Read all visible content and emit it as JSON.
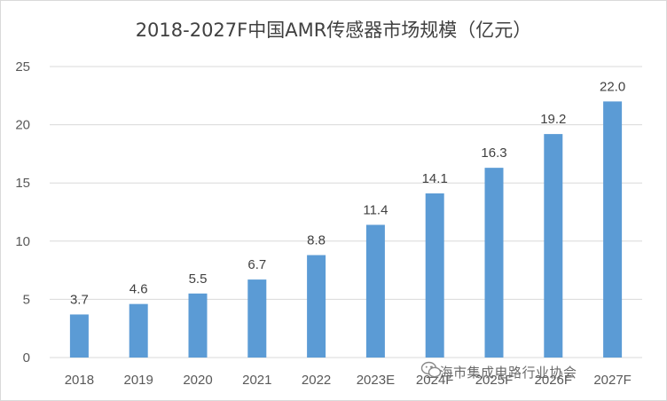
{
  "chart_data": {
    "type": "bar",
    "title": "2018-2027F中国AMR传感器市场规模（亿元）",
    "categories": [
      "2018",
      "2019",
      "2020",
      "2021",
      "2022",
      "2023E",
      "2024F",
      "2025F",
      "2026F",
      "2027F"
    ],
    "values": [
      3.7,
      4.6,
      5.5,
      6.7,
      8.8,
      11.4,
      14.1,
      16.3,
      19.2,
      22.0
    ],
    "data_labels": [
      "3.7",
      "4.6",
      "5.5",
      "6.7",
      "8.8",
      "11.4",
      "14.1",
      "16.3",
      "19.2",
      "22.0"
    ],
    "y_ticks": [
      "0",
      "5",
      "10",
      "15",
      "20",
      "25"
    ],
    "ylim": [
      0,
      25
    ],
    "xlabel": "",
    "ylabel": "",
    "grid": true,
    "legend": "none",
    "bar_color": "#5b9bd5",
    "grid_color": "#d9d9d9"
  },
  "watermark": {
    "text": "上海市集成电路行业协会",
    "icon": "wechat-icon"
  }
}
